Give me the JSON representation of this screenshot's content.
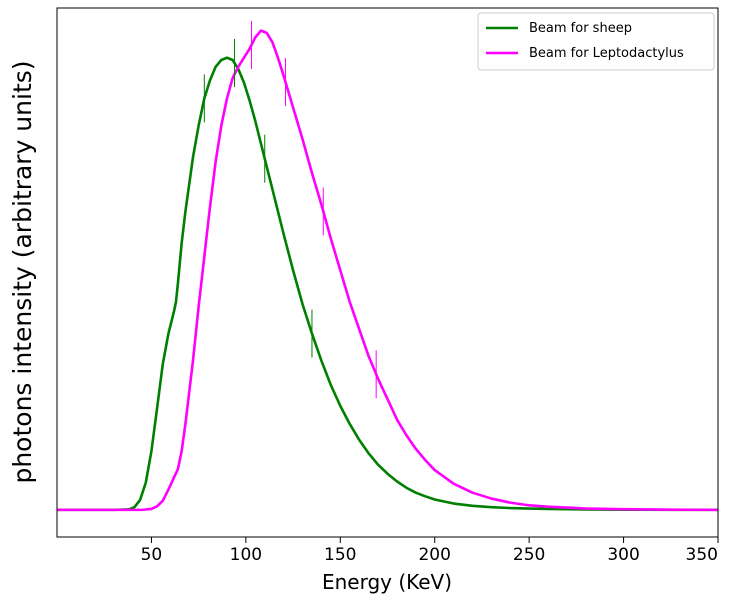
{
  "chart_data": {
    "type": "line",
    "title": "",
    "xlabel": "Energy (KeV)",
    "ylabel": "photons intensity (arbitrary units)",
    "xlim": [
      0,
      350
    ],
    "ylim": [
      -0.06,
      1.11
    ],
    "xticks": [
      50,
      100,
      150,
      200,
      250,
      300,
      350
    ],
    "yticks": [],
    "grid": false,
    "legend": "top-right",
    "series": [
      {
        "name": "Beam for sheep",
        "color": "#008000",
        "x": [
          0,
          30,
          38,
          41,
          44,
          47,
          50,
          53,
          56,
          59,
          62,
          63,
          64,
          66,
          68,
          70,
          72,
          75,
          78,
          81,
          84,
          87,
          90,
          93,
          96,
          99,
          102,
          105,
          108,
          111,
          114,
          117,
          120,
          125,
          130,
          135,
          140,
          145,
          150,
          155,
          160,
          165,
          170,
          175,
          180,
          185,
          190,
          195,
          200,
          210,
          220,
          230,
          240,
          250,
          260,
          270,
          280,
          300,
          325,
          350
        ],
        "y": [
          0.0,
          0.0,
          0.001,
          0.006,
          0.022,
          0.06,
          0.13,
          0.225,
          0.322,
          0.39,
          0.44,
          0.46,
          0.5,
          0.59,
          0.66,
          0.72,
          0.78,
          0.85,
          0.91,
          0.95,
          0.98,
          0.995,
          1.0,
          0.995,
          0.975,
          0.945,
          0.905,
          0.86,
          0.81,
          0.76,
          0.71,
          0.66,
          0.61,
          0.53,
          0.455,
          0.39,
          0.33,
          0.276,
          0.23,
          0.19,
          0.155,
          0.125,
          0.1,
          0.08,
          0.063,
          0.049,
          0.038,
          0.03,
          0.023,
          0.014,
          0.009,
          0.006,
          0.004,
          0.003,
          0.002,
          0.0015,
          0.001,
          0.0005,
          0.0002,
          0.0
        ]
      },
      {
        "name": "Beam for Leptodactylus",
        "color": "#ff00ff",
        "x": [
          0,
          45,
          50,
          53,
          56,
          59,
          62,
          64,
          66,
          68,
          70,
          72,
          75,
          78,
          81,
          84,
          87,
          90,
          93,
          96,
          99,
          102,
          105,
          108,
          111,
          114,
          117,
          120,
          125,
          130,
          135,
          140,
          145,
          150,
          155,
          160,
          165,
          170,
          175,
          180,
          185,
          190,
          195,
          200,
          210,
          220,
          230,
          240,
          250,
          260,
          270,
          280,
          300,
          325,
          350
        ],
        "y": [
          0.0,
          0.0,
          0.002,
          0.008,
          0.02,
          0.045,
          0.072,
          0.09,
          0.13,
          0.19,
          0.26,
          0.33,
          0.45,
          0.56,
          0.67,
          0.77,
          0.85,
          0.91,
          0.955,
          0.98,
          1.0,
          1.02,
          1.045,
          1.06,
          1.055,
          1.035,
          1.0,
          0.96,
          0.89,
          0.82,
          0.745,
          0.675,
          0.6,
          0.53,
          0.46,
          0.4,
          0.34,
          0.29,
          0.245,
          0.2,
          0.165,
          0.135,
          0.11,
          0.088,
          0.058,
          0.038,
          0.025,
          0.016,
          0.01,
          0.007,
          0.005,
          0.003,
          0.0015,
          0.0005,
          0.0
        ]
      }
    ],
    "markers": [
      {
        "series": 0,
        "x": [
          78,
          94,
          110,
          135
        ]
      },
      {
        "series": 1,
        "x": [
          103,
          121,
          141,
          169
        ]
      }
    ]
  }
}
